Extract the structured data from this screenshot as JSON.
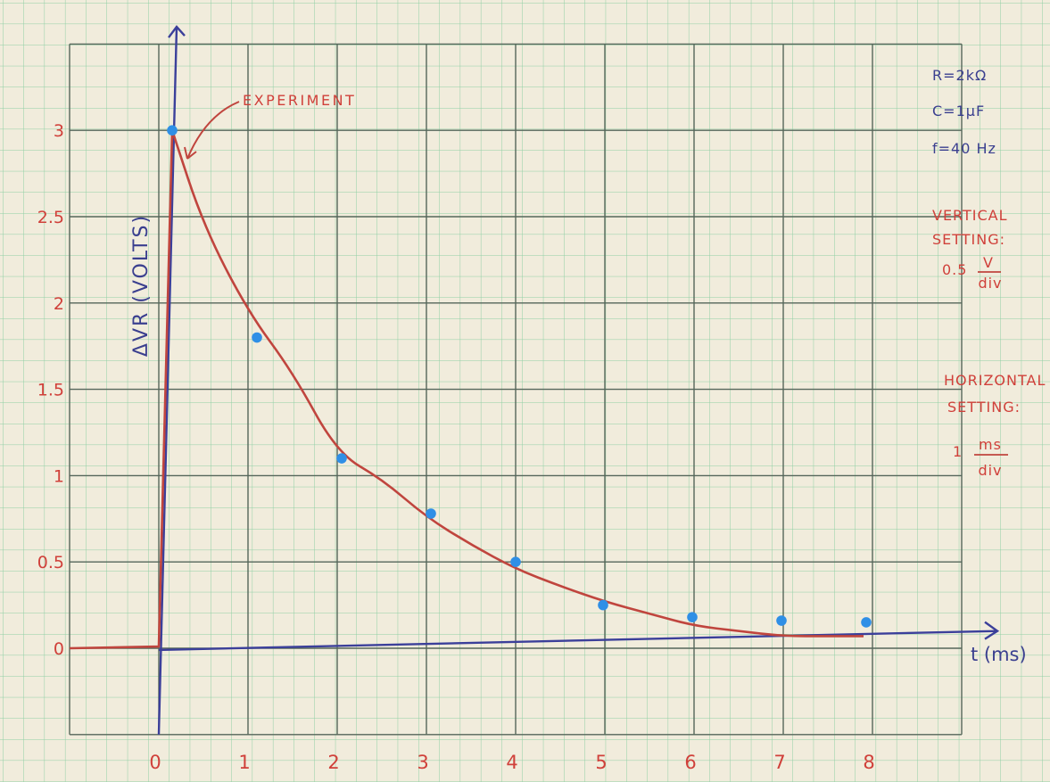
{
  "chart_data": {
    "type": "scatter",
    "title": "",
    "xlabel": "t (ms)",
    "ylabel": "ΔVR (VOLTS)",
    "xlim": [
      -1,
      9
    ],
    "ylim": [
      -0.5,
      3.5
    ],
    "grid": true,
    "x_ticks": [
      "0",
      "1",
      "2",
      "3",
      "4",
      "5",
      "6",
      "7",
      "8"
    ],
    "y_ticks": [
      "0",
      "0.5",
      "1",
      "1.5",
      "2",
      "2.5",
      "3"
    ],
    "series": [
      {
        "type": "scatter",
        "color": "#2f8fe6",
        "points": [
          {
            "x": 0.15,
            "y": 3.0
          },
          {
            "x": 1.1,
            "y": 1.8
          },
          {
            "x": 2.05,
            "y": 1.1
          },
          {
            "x": 3.05,
            "y": 0.78
          },
          {
            "x": 4.0,
            "y": 0.5
          },
          {
            "x": 4.98,
            "y": 0.25
          },
          {
            "x": 5.98,
            "y": 0.18
          },
          {
            "x": 6.98,
            "y": 0.16
          },
          {
            "x": 7.93,
            "y": 0.15
          }
        ]
      },
      {
        "name": "EXPERIMENT",
        "type": "line",
        "color": "#c0453e",
        "points": [
          {
            "x": -1.0,
            "y": 0.0
          },
          {
            "x": 0.0,
            "y": 0.01
          },
          {
            "x": 0.15,
            "y": 3.0
          },
          {
            "x": 0.5,
            "y": 2.45
          },
          {
            "x": 1.0,
            "y": 1.95
          },
          {
            "x": 1.5,
            "y": 1.6
          },
          {
            "x": 2.0,
            "y": 1.13
          },
          {
            "x": 2.5,
            "y": 0.98
          },
          {
            "x": 3.0,
            "y": 0.76
          },
          {
            "x": 3.5,
            "y": 0.6
          },
          {
            "x": 4.0,
            "y": 0.46
          },
          {
            "x": 4.5,
            "y": 0.36
          },
          {
            "x": 5.0,
            "y": 0.27
          },
          {
            "x": 5.5,
            "y": 0.2
          },
          {
            "x": 6.0,
            "y": 0.13
          },
          {
            "x": 6.5,
            "y": 0.1
          },
          {
            "x": 7.0,
            "y": 0.07
          },
          {
            "x": 7.5,
            "y": 0.07
          },
          {
            "x": 7.9,
            "y": 0.07
          }
        ]
      }
    ],
    "annotations": [
      {
        "text": "EXPERIMENT"
      },
      {
        "text": "R=2kΩ"
      },
      {
        "text": "C=1μF"
      },
      {
        "text": "f=40 Hz"
      },
      {
        "text": "VERTICAL"
      },
      {
        "text": "SETTING:"
      },
      {
        "text": "0.5"
      },
      {
        "text": "V"
      },
      {
        "text": "div"
      },
      {
        "text": "HORIZONTAL"
      },
      {
        "text": "SETTING:"
      },
      {
        "text": "1"
      },
      {
        "text": "ms"
      },
      {
        "text": "div"
      }
    ]
  }
}
